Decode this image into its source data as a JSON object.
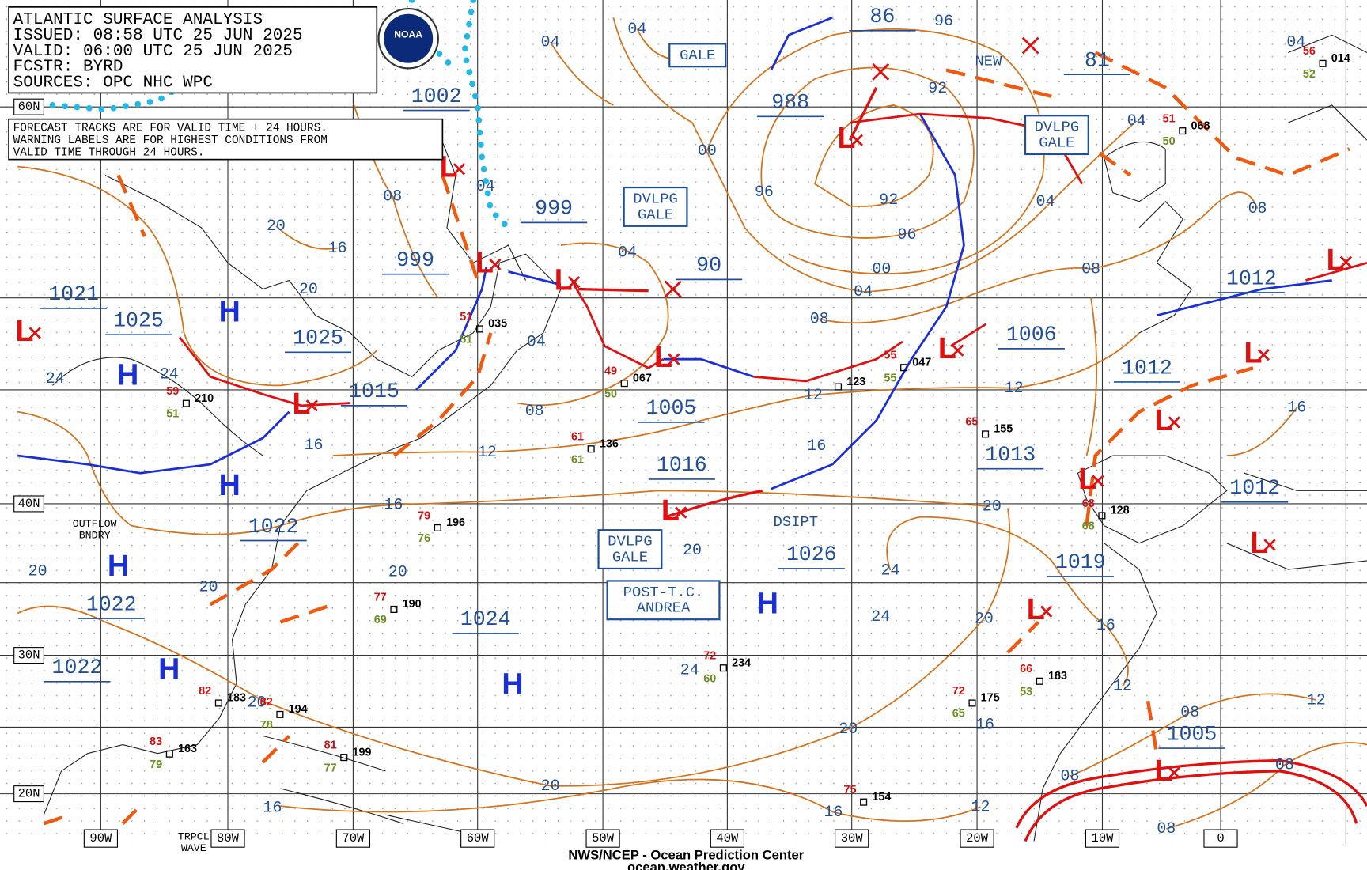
{
  "header": {
    "lines": [
      "ATLANTIC SURFACE ANALYSIS",
      "ISSUED: 08:58 UTC 25 JUN 2025",
      "VALID: 06:00 UTC 25 JUN 2025",
      "FCSTR:  BYRD",
      "SOURCES: OPC NHC WPC"
    ]
  },
  "note": [
    "FORECAST TRACKS ARE FOR VALID TIME + 24 HOURS.",
    "WARNING LABELS ARE FOR HIGHEST CONDITIONS FROM",
    "VALID TIME THROUGH 24 HOURS."
  ],
  "logo": "NOAA",
  "latitudes": [
    "60N",
    "40N",
    "30N",
    "20N"
  ],
  "longitudes": [
    "90W",
    "80W",
    "70W",
    "60W",
    "50W",
    "40W",
    "30W",
    "20W",
    "10W",
    "0"
  ],
  "symbols": {
    "high": "H",
    "low": "L"
  },
  "centers": [
    "1002",
    "999",
    "999",
    "1021",
    "1025",
    "1025",
    "1015",
    "1005",
    "1016",
    "1022",
    "1022",
    "1022",
    "1024",
    "988",
    "90",
    "86",
    "1006",
    "1013",
    "1012",
    "1012",
    "1012",
    "1026",
    "1019",
    "1005",
    "81"
  ],
  "isobar_labels": [
    "04",
    "04",
    "08",
    "20",
    "16",
    "20",
    "24",
    "24",
    "16",
    "16",
    "20",
    "20",
    "20",
    "20",
    "16",
    "12",
    "08",
    "04",
    "04",
    "00",
    "96",
    "92",
    "96",
    "00",
    "04",
    "08",
    "12",
    "16",
    "20",
    "24",
    "24",
    "20",
    "20",
    "20",
    "16",
    "12",
    "16",
    "12",
    "16",
    "12",
    "08",
    "12",
    "08",
    "08",
    "08",
    "16",
    "08",
    "08",
    "04",
    "04",
    "04",
    "96",
    "92",
    "24",
    "20",
    "04"
  ],
  "warnings": [
    [
      "GALE"
    ],
    [
      "DVLPG",
      "GALE"
    ],
    [
      "DVLPG",
      "GALE"
    ],
    [
      "DVLPG",
      "GALE"
    ],
    [
      "POST-T.C.",
      "ANDREA"
    ]
  ],
  "labels": [
    [
      "NEW"
    ],
    [
      "DSIPT"
    ],
    [
      "OUTFLOW",
      "BNDRY"
    ],
    [
      "TRPCL",
      "WAVE"
    ]
  ],
  "stations": [
    {
      "pressure": "196",
      "temp": "79",
      "dew": "76"
    },
    {
      "pressure": "190",
      "temp": "77",
      "dew": "69"
    },
    {
      "pressure": "234",
      "temp": "72",
      "dew": "60"
    },
    {
      "pressure": "155",
      "temp": "65"
    },
    {
      "pressure": "175",
      "temp": "72",
      "dew": "65"
    },
    {
      "pressure": "183",
      "temp": "66",
      "dew": "53"
    },
    {
      "pressure": "128",
      "temp": "68",
      "dew": "68"
    },
    {
      "pressure": "136",
      "temp": "61",
      "dew": "61"
    },
    {
      "pressure": "067",
      "temp": "49",
      "dew": "50"
    },
    {
      "pressure": "123"
    },
    {
      "pressure": "047",
      "temp": "55",
      "dew": "55"
    },
    {
      "pressure": "068",
      "temp": "51",
      "dew": "50"
    },
    {
      "pressure": "014",
      "temp": "56",
      "dew": "52"
    },
    {
      "pressure": "035",
      "temp": "51",
      "dew": "51"
    },
    {
      "pressure": "210",
      "temp": "59",
      "dew": "51"
    },
    {
      "pressure": "199",
      "temp": "81",
      "dew": "77"
    },
    {
      "pressure": "194",
      "temp": "82",
      "dew": "78"
    },
    {
      "pressure": "163",
      "temp": "83",
      "dew": "79"
    },
    {
      "pressure": "154",
      "temp": "75"
    },
    {
      "pressure": "183",
      "temp": "82"
    }
  ],
  "footer": [
    "NWS/NCEP - Ocean Prediction Center",
    "ocean.weather.gov"
  ]
}
